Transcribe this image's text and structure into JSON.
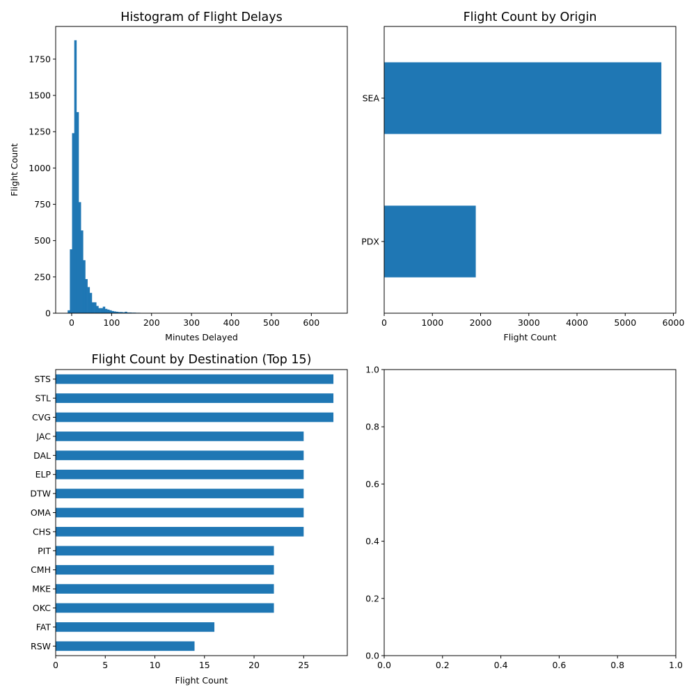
{
  "chart_data": [
    {
      "type": "bar",
      "subtype": "histogram",
      "title": "Histogram of Flight Delays",
      "xlabel": "Minutes Delayed",
      "ylabel": "Flight Count",
      "xlim": [
        -40,
        690
      ],
      "ylim": [
        0,
        1975
      ],
      "xticks": [
        0,
        100,
        200,
        300,
        400,
        500,
        600
      ],
      "yticks": [
        0,
        250,
        500,
        750,
        1000,
        1250,
        1500,
        1750
      ],
      "bin_width": 5.5,
      "bins": [
        {
          "x": -10,
          "value": 20
        },
        {
          "x": -4.5,
          "value": 440
        },
        {
          "x": 1,
          "value": 1240
        },
        {
          "x": 6.5,
          "value": 1880
        },
        {
          "x": 12,
          "value": 1385
        },
        {
          "x": 17.5,
          "value": 765
        },
        {
          "x": 23,
          "value": 570
        },
        {
          "x": 28.5,
          "value": 365
        },
        {
          "x": 34,
          "value": 235
        },
        {
          "x": 39.5,
          "value": 180
        },
        {
          "x": 45,
          "value": 140
        },
        {
          "x": 50.5,
          "value": 75
        },
        {
          "x": 56,
          "value": 75
        },
        {
          "x": 61.5,
          "value": 50
        },
        {
          "x": 67,
          "value": 35
        },
        {
          "x": 72.5,
          "value": 35
        },
        {
          "x": 78,
          "value": 45
        },
        {
          "x": 83.5,
          "value": 30
        },
        {
          "x": 89,
          "value": 25
        },
        {
          "x": 94.5,
          "value": 20
        },
        {
          "x": 100,
          "value": 15
        },
        {
          "x": 105.5,
          "value": 12
        },
        {
          "x": 111,
          "value": 10
        },
        {
          "x": 116.5,
          "value": 8
        },
        {
          "x": 122,
          "value": 8
        },
        {
          "x": 127.5,
          "value": 6
        },
        {
          "x": 133,
          "value": 10
        },
        {
          "x": 138.5,
          "value": 5
        },
        {
          "x": 144,
          "value": 5
        },
        {
          "x": 149.5,
          "value": 4
        },
        {
          "x": 155,
          "value": 4
        },
        {
          "x": 160.5,
          "value": 3
        },
        {
          "x": 166,
          "value": 3
        },
        {
          "x": 171.5,
          "value": 2
        },
        {
          "x": 177,
          "value": 2
        },
        {
          "x": 182.5,
          "value": 2
        },
        {
          "x": 188,
          "value": 1
        },
        {
          "x": 193.5,
          "value": 1
        },
        {
          "x": 199,
          "value": 1
        }
      ],
      "grid": false,
      "color": "#1f77b4"
    },
    {
      "type": "bar",
      "orientation": "horizontal",
      "title": "Flight Count by Origin",
      "xlabel": "Flight Count",
      "ylabel": "",
      "categories": [
        "SEA",
        "PDX"
      ],
      "values": [
        5750,
        1900
      ],
      "xlim": [
        0,
        6050
      ],
      "xticks": [
        0,
        1000,
        2000,
        3000,
        4000,
        5000,
        6000
      ],
      "grid": false,
      "color": "#1f77b4"
    },
    {
      "type": "bar",
      "orientation": "horizontal",
      "title": "Flight Count by Destination (Top 15)",
      "xlabel": "Flight Count",
      "ylabel": "",
      "categories": [
        "STS",
        "STL",
        "CVG",
        "JAC",
        "DAL",
        "ELP",
        "DTW",
        "OMA",
        "CHS",
        "PIT",
        "CMH",
        "MKE",
        "OKC",
        "FAT",
        "RSW"
      ],
      "values": [
        28,
        28,
        28,
        25,
        25,
        25,
        25,
        25,
        25,
        22,
        22,
        22,
        22,
        16,
        14
      ],
      "xlim": [
        0,
        29.4
      ],
      "xticks": [
        0,
        5,
        10,
        15,
        20,
        25
      ],
      "grid": false,
      "color": "#1f77b4"
    },
    {
      "type": "scatter",
      "title": "",
      "xlabel": "",
      "ylabel": "",
      "x": [],
      "y": [],
      "xlim": [
        0,
        1
      ],
      "ylim": [
        0,
        1
      ],
      "xticks": [
        0.0,
        0.2,
        0.4,
        0.6,
        0.8,
        1.0
      ],
      "yticks": [
        0.0,
        0.2,
        0.4,
        0.6,
        0.8,
        1.0
      ],
      "grid": false
    }
  ]
}
